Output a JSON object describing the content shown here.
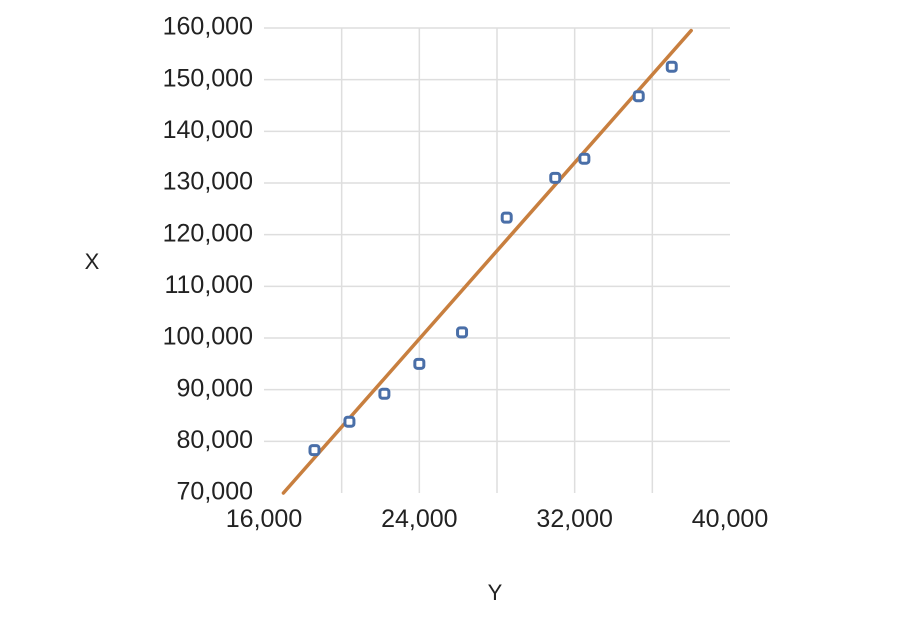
{
  "chart_data": {
    "type": "scatter",
    "title": "",
    "xlabel": "Y",
    "ylabel": "X",
    "xlim": [
      16000,
      40000
    ],
    "ylim": [
      70000,
      160000
    ],
    "x_ticks": [
      16000,
      24000,
      32000,
      40000
    ],
    "x_tick_labels": [
      "16,000",
      "24,000",
      "32,000",
      "40,000"
    ],
    "y_ticks": [
      70000,
      80000,
      90000,
      100000,
      110000,
      120000,
      130000,
      140000,
      150000,
      160000
    ],
    "y_tick_labels": [
      "70,000",
      "80,000",
      "90,000",
      "100,000",
      "110,000",
      "120,000",
      "130,000",
      "140,000",
      "150,000",
      "160,000"
    ],
    "grid": true,
    "series": [
      {
        "points": [
          {
            "x": 18600,
            "y": 78300
          },
          {
            "x": 20400,
            "y": 83800
          },
          {
            "x": 22200,
            "y": 89200
          },
          {
            "x": 24000,
            "y": 95000
          },
          {
            "x": 26200,
            "y": 101100
          },
          {
            "x": 28500,
            "y": 123300
          },
          {
            "x": 31000,
            "y": 131000
          },
          {
            "x": 32500,
            "y": 134700
          },
          {
            "x": 35300,
            "y": 146800
          },
          {
            "x": 37000,
            "y": 152500
          }
        ],
        "color": "#4a6fa8",
        "marker": "hollow-square"
      }
    ],
    "trendline": {
      "type": "linear",
      "color": "#c87f3f",
      "start": {
        "x": 17000,
        "y": 70000
      },
      "end": {
        "x": 38000,
        "y": 159500
      }
    }
  }
}
